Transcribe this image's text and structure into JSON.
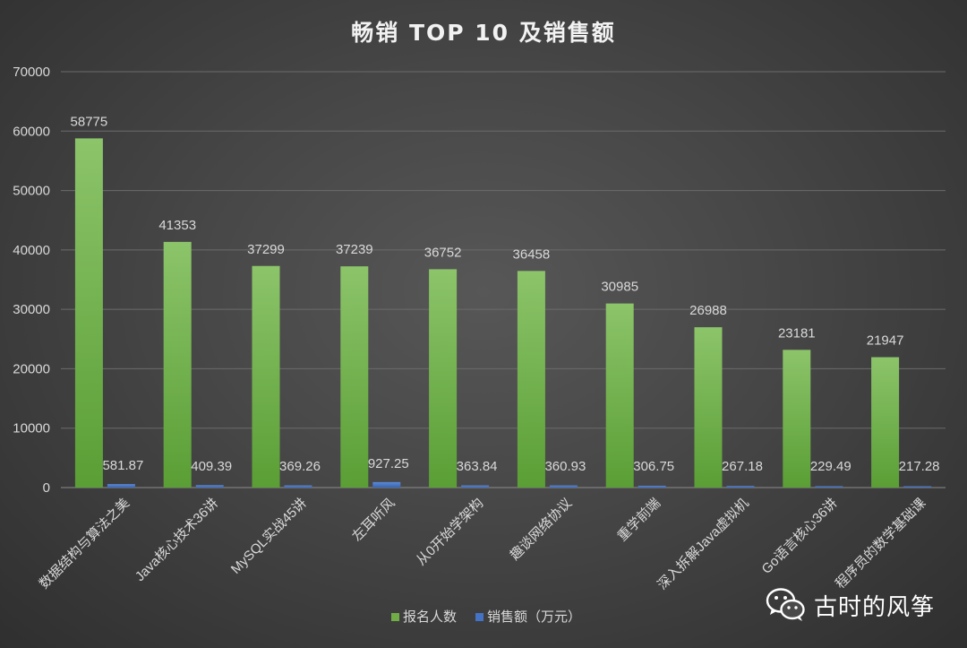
{
  "chart_data": {
    "type": "bar",
    "title": "畅销 TOP 10 及销售额",
    "categories": [
      "数据结构与算法之美",
      "Java核心技术36讲",
      "MySQL实战45讲",
      "左耳听风",
      "从0开始学架构",
      "趣谈网络协议",
      "重学前端",
      "深入拆解Java虚拟机",
      "Go语言核心36讲",
      "程序员的数学基础课"
    ],
    "series": [
      {
        "name": "报名人数",
        "color": "#70ad47",
        "values": [
          58775,
          41353,
          37299,
          37239,
          36752,
          36458,
          30985,
          26988,
          23181,
          21947
        ],
        "labels": [
          "58775",
          "41353",
          "37299",
          "37239",
          "36752",
          "36458",
          "30985",
          "26988",
          "23181",
          "21947"
        ]
      },
      {
        "name": "销售额（万元）",
        "color": "#4472c4",
        "values": [
          581.87,
          409.39,
          369.26,
          927.25,
          363.84,
          360.93,
          306.75,
          267.18,
          229.49,
          217.28
        ],
        "labels": [
          "581.87",
          "409.39",
          "369.26",
          "927.25",
          "363.84",
          "360.93",
          "306.75",
          "267.18",
          "229.49",
          "217.28"
        ]
      }
    ],
    "ylim": [
      0,
      70000
    ],
    "yticks": [
      "0",
      "10000",
      "20000",
      "30000",
      "40000",
      "50000",
      "60000",
      "70000"
    ],
    "grid": true,
    "legend_position": "bottom"
  },
  "watermark": {
    "text": "古时的风筝",
    "icon": "wechat-icon"
  }
}
